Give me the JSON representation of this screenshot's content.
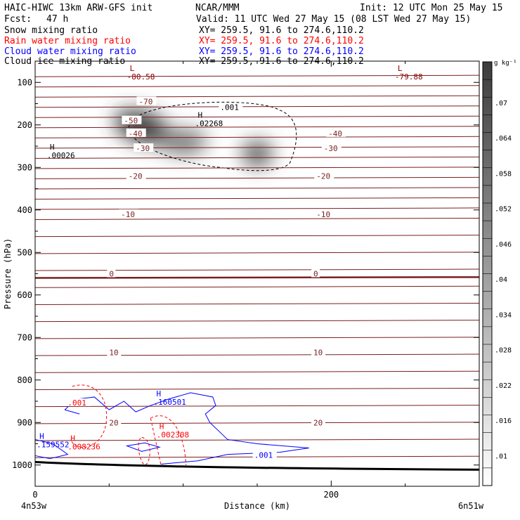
{
  "header": {
    "model": "HAIC-HIWC 13km ARW-GFS init",
    "org": "NCAR/MMM",
    "init": "Init: 12 UTC Mon 25 May 15",
    "fcst_label": "Fcst:",
    "fcst_value": "47 h",
    "valid": "Valid: 11 UTC Wed 27 May 15 (08 LST Wed 27 May 15)"
  },
  "fields": [
    {
      "name": "Snow mixing ratio",
      "xy": "XY= 259.5, 91.6 to 274.6,110.2",
      "color": "#000000"
    },
    {
      "name": "Rain water mixing ratio",
      "xy": "XY= 259.5, 91.6 to 274.6,110.2",
      "color": "#ff0000"
    },
    {
      "name": "Cloud water mixing ratio",
      "xy": "XY= 259.5, 91.6 to 274.6,110.2",
      "color": "#0000ff"
    },
    {
      "name": "Cloud ice mixing ratio",
      "xy": "XY= 259.5, 91.6 to 274.6,110.2",
      "color": "#000000"
    }
  ],
  "chart_data": {
    "type": "heatmap",
    "xlabel": "Distance (km)",
    "ylabel": "Pressure (hPa)",
    "xlim": [
      0,
      300
    ],
    "ylim": [
      1050,
      50
    ],
    "x_ticks": [
      0,
      200
    ],
    "y_ticks": [
      100,
      200,
      300,
      400,
      500,
      600,
      700,
      800,
      900,
      1000
    ],
    "x_endpoints": [
      "4n53w",
      "6n51w"
    ],
    "colorbar": {
      "unit": "g kg⁻¹",
      "ticks": [
        ".01",
        ".016",
        ".022",
        ".028",
        ".034",
        ".04",
        ".046",
        ".052",
        ".058",
        ".064",
        ".07"
      ]
    },
    "temperature_contours": [
      {
        "label": "-70",
        "p": 145
      },
      {
        "label": "-50",
        "p": 190
      },
      {
        "label": "-40",
        "p": 220
      },
      {
        "label": "-30",
        "p": 255
      },
      {
        "label": "-20",
        "p": 320
      },
      {
        "label": "-10",
        "p": 410
      },
      {
        "label": "0",
        "p": 550
      },
      {
        "label": "10",
        "p": 735
      },
      {
        "label": "20",
        "p": 900
      }
    ],
    "labels": [
      {
        "text": "L",
        "value": "-80.58",
        "x": 62,
        "p": 80,
        "color": "#8b0000"
      },
      {
        "text": "L",
        "value": "-79.88",
        "x": 243,
        "p": 80,
        "color": "#8b0000"
      },
      {
        "text": "H",
        "value": ".02268",
        "x": 108,
        "p": 190,
        "color": "#000000"
      },
      {
        "text": "H",
        "value": ".00026",
        "x": 8,
        "p": 265,
        "color": "#000000"
      },
      {
        "text": "H",
        "value": ".160501",
        "x": 80,
        "p": 845,
        "color": "#0000ff"
      },
      {
        "text": "H",
        "value": ".002308",
        "x": 82,
        "p": 922,
        "color": "#ff0000"
      },
      {
        "text": "H",
        "value": ".008236",
        "x": 22,
        "p": 950,
        "color": "#ff0000"
      },
      {
        "text": "H",
        "value": ".159552",
        "x": 1,
        "p": 945,
        "color": "#0000ff"
      }
    ],
    "contour_labels": [
      {
        "text": ".001",
        "x": 125,
        "p": 160,
        "color": "#000000"
      },
      {
        "text": ".001",
        "x": 22,
        "p": 855,
        "color": "#ff0000"
      },
      {
        "text": ".001",
        "x": 148,
        "p": 978,
        "color": "#0000ff"
      }
    ]
  }
}
